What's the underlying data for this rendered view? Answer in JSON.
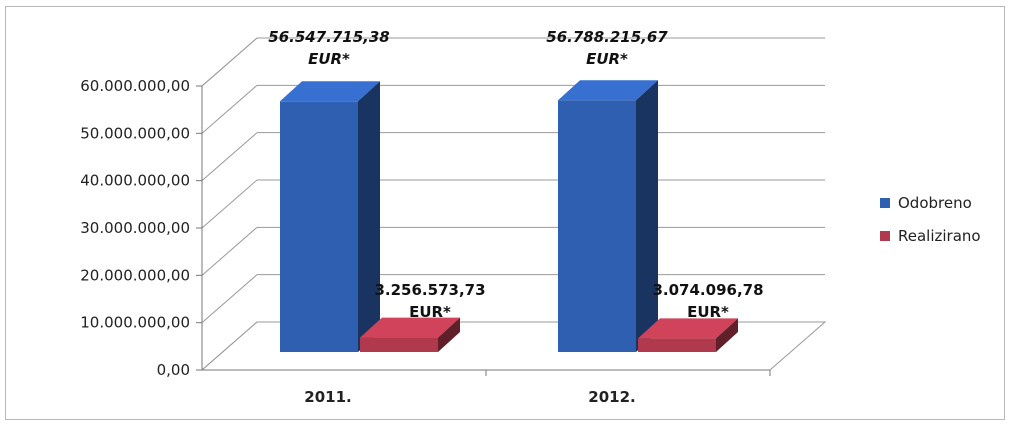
{
  "chart_data": {
    "type": "bar",
    "categories": [
      "2011.",
      "2012."
    ],
    "series": [
      {
        "name": "Odobreno",
        "values": [
          56547715.38,
          56788215.67
        ],
        "color": "#2f5fb0"
      },
      {
        "name": "Realizirano",
        "values": [
          3256573.73,
          3074096.78
        ],
        "color": "#b0394d"
      }
    ],
    "data_labels": {
      "Odobreno": [
        [
          "56.547.715,38",
          "EUR*"
        ],
        [
          "56.788.215,67",
          "EUR*"
        ]
      ],
      "Realizirano": [
        [
          "3.256.573,73",
          "EUR*"
        ],
        [
          "3.074.096,78",
          "EUR*"
        ]
      ]
    },
    "ylim": [
      0,
      60000000
    ],
    "y_ticks": [
      0,
      10000000,
      20000000,
      30000000,
      40000000,
      50000000,
      60000000
    ],
    "y_tick_labels": [
      "0,00",
      "10.000.000,00",
      "20.000.000,00",
      "30.000.000,00",
      "40.000.000,00",
      "50.000.000,00",
      "60.000.000,00"
    ],
    "grid": true,
    "legend": "right",
    "three_d": true
  }
}
